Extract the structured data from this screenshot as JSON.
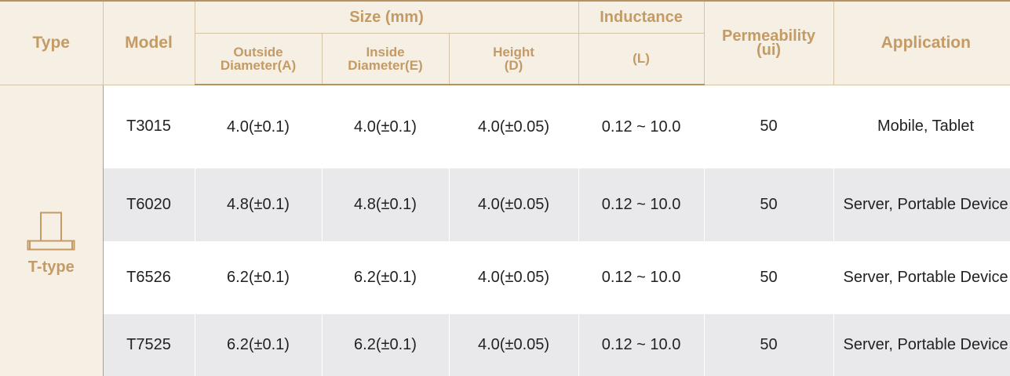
{
  "header": {
    "type": "Type",
    "model": "Model",
    "size_group": "Size (mm)",
    "outside_diameter": [
      "Outside",
      "Diameter(A)"
    ],
    "inside_diameter": [
      "Inside",
      "Diameter(E)"
    ],
    "height": [
      "Height",
      "(D)"
    ],
    "inductance": "Inductance",
    "inductance_unit": "(L)",
    "permeability": [
      "Permeability",
      "(ui)"
    ],
    "application": "Application"
  },
  "type_group": {
    "label": "T-type",
    "icon": "t-type-core-icon"
  },
  "rows": [
    {
      "model": "T3015",
      "outside": "4.0(±0.1)",
      "inside": "4.0(±0.1)",
      "height": "4.0(±0.05)",
      "inductance": "0.12 ~ 10.0",
      "permeability": "50",
      "application": "Mobile, Tablet"
    },
    {
      "model": "T6020",
      "outside": "4.8(±0.1)",
      "inside": "4.8(±0.1)",
      "height": "4.0(±0.05)",
      "inductance": "0.12 ~ 10.0",
      "permeability": "50",
      "application": "Server, Portable Device"
    },
    {
      "model": "T6526",
      "outside": "6.2(±0.1)",
      "inside": "6.2(±0.1)",
      "height": "4.0(±0.05)",
      "inductance": "0.12 ~ 10.0",
      "permeability": "50",
      "application": "Server, Portable Device"
    },
    {
      "model": "T7525",
      "outside": "6.2(±0.1)",
      "inside": "6.2(±0.1)",
      "height": "4.0(±0.05)",
      "inductance": "0.12 ~ 10.0",
      "permeability": "50",
      "application": "Server, Portable Device"
    }
  ],
  "colors": {
    "header_bg": "#f5efe4",
    "header_text": "#c49a65",
    "rule": "#b89163",
    "row_alt": "#e9e9eb"
  }
}
